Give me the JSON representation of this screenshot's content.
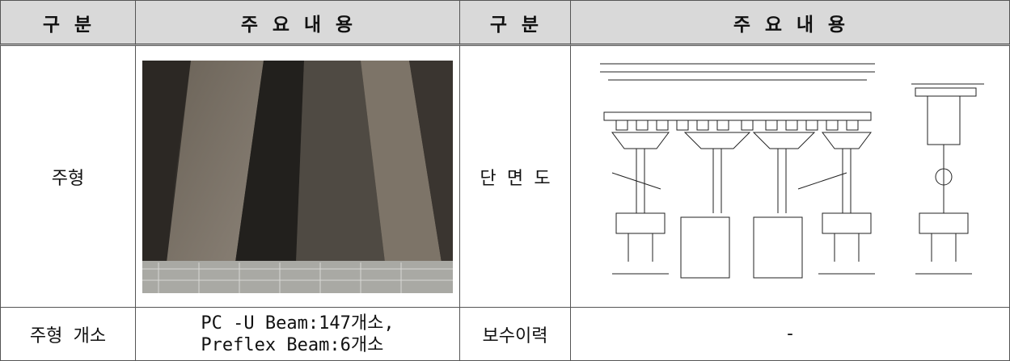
{
  "table": {
    "header": [
      "구 분",
      "주 요 내 용",
      "구 분",
      "주 요 내 용"
    ],
    "rows": [
      {
        "section": "주형",
        "section2": "단 면 도"
      },
      {
        "section": "주형 개소",
        "content": [
          "PC -U Beam:147개소,",
          "Preflex Beam:6개소"
        ],
        "section2": "보수이력",
        "content2": "-"
      }
    ]
  }
}
